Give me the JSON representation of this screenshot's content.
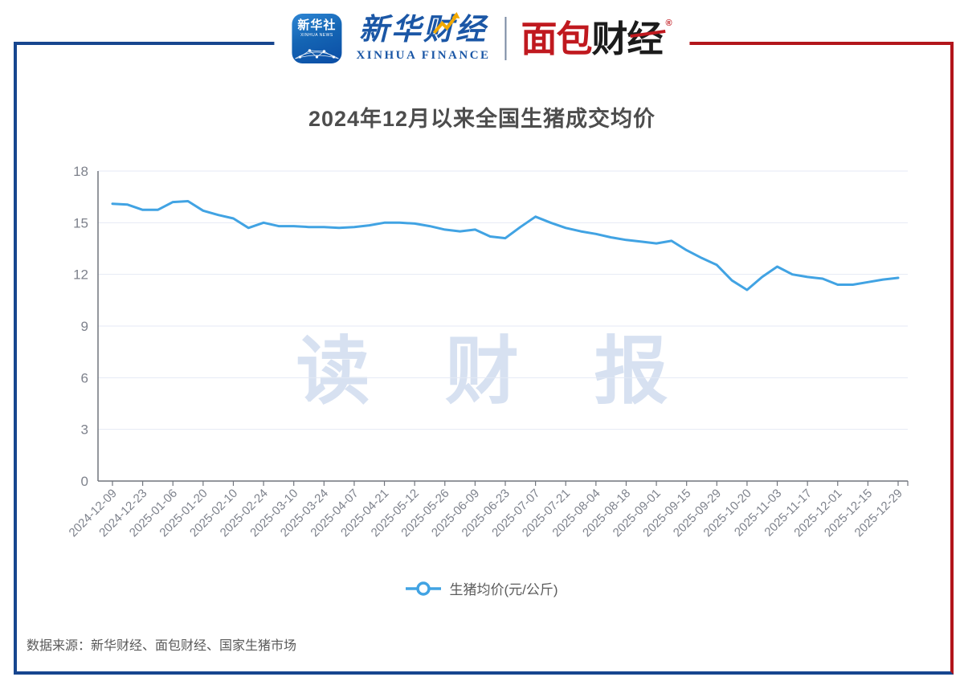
{
  "header": {
    "xinhua_news_icon": {
      "line1": "新华社",
      "line2": "XINHUA NEWS"
    },
    "xinhua_finance": {
      "cn": "新华财经",
      "en": "XINHUA FINANCE"
    },
    "mianbao_logo": {
      "cn_red": "面包",
      "cn_black": "财经",
      "registered_mark": "®"
    }
  },
  "watermark": "读 财 报",
  "legend": {
    "label": "生猪均价(元/公斤)"
  },
  "footer": {
    "source": "数据来源：新华财经、面包财经、国家生猪市场"
  },
  "colors": {
    "frame_blue": "#17468f",
    "frame_red": "#b2151b",
    "line": "#41a3e3",
    "grid": "#e4eaf4",
    "axis": "#71757d",
    "tick_label": "#7e828c",
    "watermark": "#d7e1f1"
  },
  "chart_data": {
    "type": "line",
    "title": "2024年12月以来全国生猪成交均价",
    "series_name": "生猪均价(元/公斤)",
    "ylabel": "",
    "xlabel": "",
    "ylim": [
      0,
      18
    ],
    "yticks": [
      0,
      3,
      6,
      9,
      12,
      15,
      18
    ],
    "grid": true,
    "legend_position": "bottom",
    "label_every": 2,
    "x": [
      "2024-12-09",
      "2024-12-16",
      "2024-12-23",
      "2024-12-30",
      "2025-01-06",
      "2025-01-13",
      "2025-01-20",
      "2025-01-27",
      "2025-02-10",
      "2025-02-17",
      "2025-02-24",
      "2025-03-03",
      "2025-03-10",
      "2025-03-17",
      "2025-03-24",
      "2025-03-31",
      "2025-04-07",
      "2025-04-14",
      "2025-04-21",
      "2025-04-28",
      "2025-05-12",
      "2025-05-19",
      "2025-05-26",
      "2025-06-02",
      "2025-06-09",
      "2025-06-16",
      "2025-06-23",
      "2025-06-30",
      "2025-07-07",
      "2025-07-14",
      "2025-07-21",
      "2025-07-28",
      "2025-08-04",
      "2025-08-11",
      "2025-08-18",
      "2025-08-25",
      "2025-09-01",
      "2025-09-08",
      "2025-09-15",
      "2025-09-22",
      "2025-09-29",
      "2025-10-13",
      "2025-10-20",
      "2025-10-27",
      "2025-11-03",
      "2025-11-10",
      "2025-11-17",
      "2025-11-24",
      "2025-12-01",
      "2025-12-08",
      "2025-12-15",
      "2025-12-22",
      "2025-12-29"
    ],
    "values": [
      16.1,
      16.05,
      15.75,
      15.75,
      16.2,
      16.25,
      15.7,
      15.45,
      15.25,
      14.7,
      15.0,
      14.8,
      14.8,
      14.75,
      14.75,
      14.7,
      14.75,
      14.85,
      15.0,
      15.0,
      14.95,
      14.8,
      14.6,
      14.5,
      14.6,
      14.2,
      14.1,
      14.75,
      15.35,
      15.0,
      14.7,
      14.5,
      14.35,
      14.15,
      14.0,
      13.9,
      13.8,
      13.95,
      13.4,
      12.95,
      12.55,
      11.65,
      11.1,
      11.85,
      12.45,
      12.0,
      11.85,
      11.75,
      11.4,
      11.4,
      11.55,
      11.7,
      11.8
    ],
    "x_tick_labels": [
      "2024-12-09",
      "2024-12-23",
      "2025-01-06",
      "2025-01-20",
      "2025-02-10",
      "2025-02-24",
      "2025-03-10",
      "2025-03-24",
      "2025-04-07",
      "2025-04-21",
      "2025-05-12",
      "2025-05-26",
      "2025-06-09",
      "2025-06-23",
      "2025-07-07",
      "2025-07-21",
      "2025-08-04",
      "2025-08-18",
      "2025-09-01",
      "2025-09-15",
      "2025-09-29",
      "2025-10-20",
      "2025-11-03",
      "2025-11-17",
      "2025-12-01",
      "2025-12-15",
      "2025-12-29"
    ],
    "line_color": "#41a3e3"
  }
}
